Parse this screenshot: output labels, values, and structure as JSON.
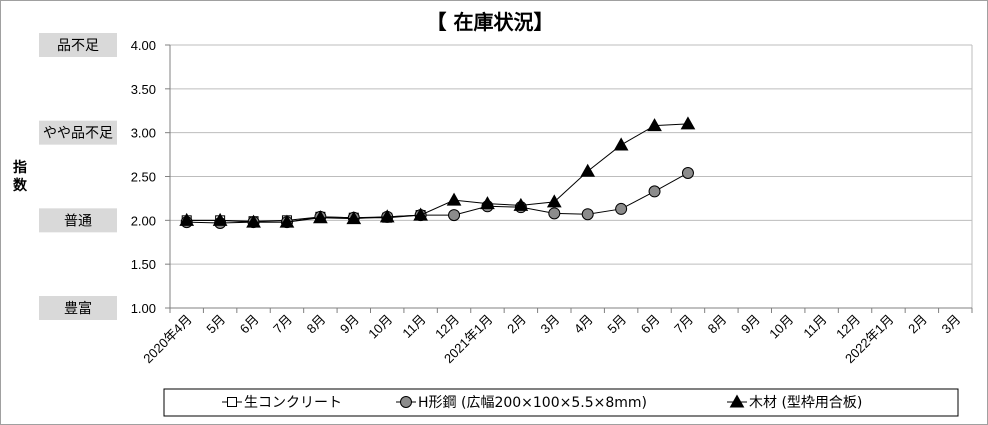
{
  "chart_data": {
    "type": "line",
    "title": "【 在庫状況】",
    "ylabel": "指数",
    "ylim": [
      1.0,
      4.0
    ],
    "yticks": [
      "1.00",
      "1.50",
      "2.00",
      "2.50",
      "3.00",
      "3.50",
      "4.00"
    ],
    "y_category_labels": [
      {
        "label": "品不足",
        "value": 4.0
      },
      {
        "label": "やや品不足",
        "value": 3.0
      },
      {
        "label": "普通",
        "value": 2.0
      },
      {
        "label": "豊富",
        "value": 1.0
      }
    ],
    "categories": [
      "2020年4月",
      "5月",
      "6月",
      "7月",
      "8月",
      "9月",
      "10月",
      "11月",
      "12月",
      "2021年1月",
      "2月",
      "3月",
      "4月",
      "5月",
      "6月",
      "7月",
      "8月",
      "9月",
      "10月",
      "11月",
      "12月",
      "2022年1月",
      "2月",
      "3月"
    ],
    "series": [
      {
        "name": "生コンクリート",
        "marker": "square",
        "values": [
          2.0,
          2.0,
          1.99,
          2.0,
          2.04,
          2.03,
          2.03,
          2.06,
          null,
          null,
          null,
          null,
          null,
          null,
          null,
          null,
          null,
          null,
          null,
          null,
          null,
          null,
          null,
          null
        ]
      },
      {
        "name": "H形鋼 (広幅200×100×5.5×8mm)",
        "marker": "circle",
        "values": [
          1.98,
          1.97,
          1.98,
          1.98,
          2.04,
          2.03,
          2.04,
          2.06,
          2.06,
          2.16,
          2.15,
          2.08,
          2.07,
          2.13,
          2.33,
          2.54,
          null,
          null,
          null,
          null,
          null,
          null,
          null,
          null
        ]
      },
      {
        "name": "木材 (型枠用合板)",
        "marker": "triangle",
        "values": [
          2.0,
          2.0,
          1.98,
          1.98,
          2.03,
          2.02,
          2.04,
          2.06,
          2.23,
          2.19,
          2.17,
          2.21,
          2.56,
          2.86,
          3.08,
          3.1,
          null,
          null,
          null,
          null,
          null,
          null,
          null,
          null
        ]
      }
    ],
    "grid": true,
    "legend_position": "bottom"
  }
}
